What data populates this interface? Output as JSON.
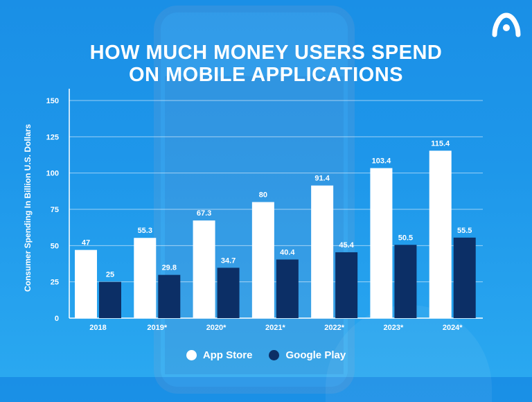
{
  "title_line1": "HOW MUCH MONEY USERS SPEND",
  "title_line2": "ON MOBILE APPLICATIONS",
  "logo_icon": "brand-logo-icon",
  "chart_data": {
    "type": "bar",
    "categories": [
      "2018",
      "2019*",
      "2020*",
      "2021*",
      "2022*",
      "2023*",
      "2024*"
    ],
    "series": [
      {
        "name": "App Store",
        "color": "#ffffff",
        "label_color": "#ffffff",
        "values": [
          47,
          55.3,
          67.3,
          80,
          91.4,
          103.4,
          115.4
        ]
      },
      {
        "name": "Google Play",
        "color": "#0c2f66",
        "label_color": "#ffffff",
        "values": [
          25,
          29.8,
          34.7,
          40.4,
          45.4,
          50.5,
          55.5
        ]
      }
    ],
    "value_labels": [
      [
        "47",
        "55.3",
        "67.3",
        "80",
        "91.4",
        "103.4",
        "115.4"
      ],
      [
        "25",
        "29.8",
        "34.7",
        "40.4",
        "45.4",
        "50.5",
        "55.5"
      ]
    ],
    "title": "HOW MUCH MONEY USERS SPEND ON MOBILE APPLICATIONS",
    "xlabel": "",
    "ylabel": "Consumer Spending In Billion U.S. Dollars",
    "ylim": [
      0,
      150
    ],
    "yticks": [
      0,
      25,
      50,
      75,
      100,
      125,
      150
    ],
    "grid": true,
    "legend_position": "bottom"
  }
}
